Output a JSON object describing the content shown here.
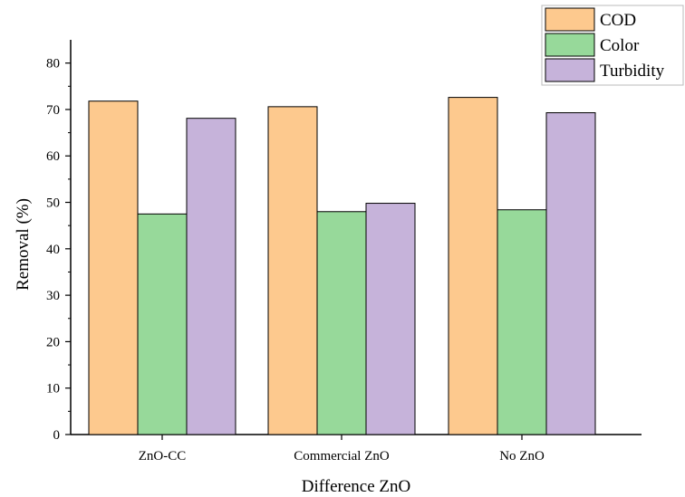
{
  "chart_data": {
    "type": "bar",
    "categories": [
      "ZnO-CC",
      "Commercial ZnO",
      "No ZnO"
    ],
    "series": [
      {
        "name": "COD",
        "color": "#fdc98e",
        "values": [
          71.8,
          70.6,
          72.6
        ]
      },
      {
        "name": "Color",
        "color": "#97d99a",
        "values": [
          47.5,
          48.0,
          48.4
        ]
      },
      {
        "name": "Turbidity",
        "color": "#c6b3da",
        "values": [
          68.1,
          49.8,
          69.3
        ]
      }
    ],
    "xlabel": "Difference ZnO",
    "ylabel": "Removal (%)",
    "ylim": [
      0,
      85
    ],
    "yticks": [
      0,
      10,
      20,
      30,
      40,
      50,
      60,
      70,
      80
    ],
    "grid": false,
    "legend_position": "top-right"
  }
}
